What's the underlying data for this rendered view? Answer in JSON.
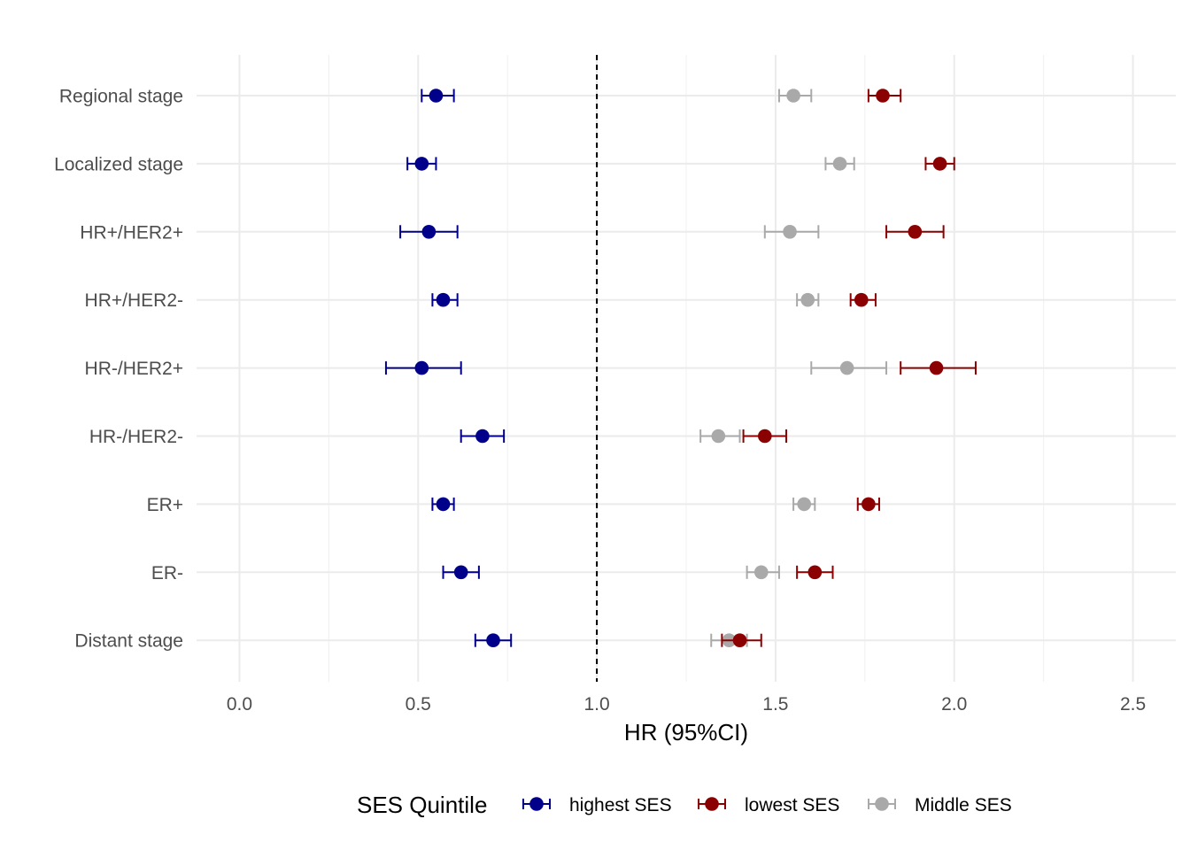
{
  "chart_data": {
    "type": "scatter",
    "subtype": "forest-plot-with-error-bars",
    "title": "",
    "xlabel": "HR (95%CI)",
    "ylabel": "",
    "xlim": [
      -0.12,
      2.62
    ],
    "x_ticks": [
      0.0,
      0.5,
      1.0,
      1.5,
      2.0,
      2.5
    ],
    "x_tick_labels": [
      "0.0",
      "0.5",
      "1.0",
      "1.5",
      "2.0",
      "2.5"
    ],
    "reference_line": {
      "x": 1.0,
      "style": "dashed",
      "color": "#000000"
    },
    "grid": true,
    "legend": {
      "title": "SES Quintile",
      "position": "bottom"
    },
    "categories": [
      "Regional stage",
      "Localized stage",
      "HR+/HER2+",
      "HR+/HER2-",
      "HR-/HER2+",
      "HR-/HER2-",
      "ER+",
      "ER-",
      "Distant stage"
    ],
    "series": [
      {
        "name": "highest SES",
        "color": "#00008b",
        "points": [
          {
            "category": "Regional stage",
            "hr": 0.55,
            "lower": 0.51,
            "upper": 0.6
          },
          {
            "category": "Localized stage",
            "hr": 0.51,
            "lower": 0.47,
            "upper": 0.55
          },
          {
            "category": "HR+/HER2+",
            "hr": 0.53,
            "lower": 0.45,
            "upper": 0.61
          },
          {
            "category": "HR+/HER2-",
            "hr": 0.57,
            "lower": 0.54,
            "upper": 0.61
          },
          {
            "category": "HR-/HER2+",
            "hr": 0.51,
            "lower": 0.41,
            "upper": 0.62
          },
          {
            "category": "HR-/HER2-",
            "hr": 0.68,
            "lower": 0.62,
            "upper": 0.74
          },
          {
            "category": "ER+",
            "hr": 0.57,
            "lower": 0.54,
            "upper": 0.6
          },
          {
            "category": "ER-",
            "hr": 0.62,
            "lower": 0.57,
            "upper": 0.67
          },
          {
            "category": "Distant stage",
            "hr": 0.71,
            "lower": 0.66,
            "upper": 0.76
          }
        ]
      },
      {
        "name": "lowest SES",
        "color": "#8b0000",
        "points": [
          {
            "category": "Regional stage",
            "hr": 1.8,
            "lower": 1.76,
            "upper": 1.85
          },
          {
            "category": "Localized stage",
            "hr": 1.96,
            "lower": 1.92,
            "upper": 2.0
          },
          {
            "category": "HR+/HER2+",
            "hr": 1.89,
            "lower": 1.81,
            "upper": 1.97
          },
          {
            "category": "HR+/HER2-",
            "hr": 1.74,
            "lower": 1.71,
            "upper": 1.78
          },
          {
            "category": "HR-/HER2+",
            "hr": 1.95,
            "lower": 1.85,
            "upper": 2.06
          },
          {
            "category": "HR-/HER2-",
            "hr": 1.47,
            "lower": 1.41,
            "upper": 1.53
          },
          {
            "category": "ER+",
            "hr": 1.76,
            "lower": 1.73,
            "upper": 1.79
          },
          {
            "category": "ER-",
            "hr": 1.61,
            "lower": 1.56,
            "upper": 1.66
          },
          {
            "category": "Distant stage",
            "hr": 1.4,
            "lower": 1.35,
            "upper": 1.46
          }
        ]
      },
      {
        "name": "Middle SES",
        "color": "#a9a9a9",
        "points": [
          {
            "category": "Regional stage",
            "hr": 1.55,
            "lower": 1.51,
            "upper": 1.6
          },
          {
            "category": "Localized stage",
            "hr": 1.68,
            "lower": 1.64,
            "upper": 1.72
          },
          {
            "category": "HR+/HER2+",
            "hr": 1.54,
            "lower": 1.47,
            "upper": 1.62
          },
          {
            "category": "HR+/HER2-",
            "hr": 1.59,
            "lower": 1.56,
            "upper": 1.62
          },
          {
            "category": "HR-/HER2+",
            "hr": 1.7,
            "lower": 1.6,
            "upper": 1.81
          },
          {
            "category": "HR-/HER2-",
            "hr": 1.34,
            "lower": 1.29,
            "upper": 1.4
          },
          {
            "category": "ER+",
            "hr": 1.58,
            "lower": 1.55,
            "upper": 1.61
          },
          {
            "category": "ER-",
            "hr": 1.46,
            "lower": 1.42,
            "upper": 1.51
          },
          {
            "category": "Distant stage",
            "hr": 1.37,
            "lower": 1.32,
            "upper": 1.42
          }
        ]
      }
    ]
  }
}
